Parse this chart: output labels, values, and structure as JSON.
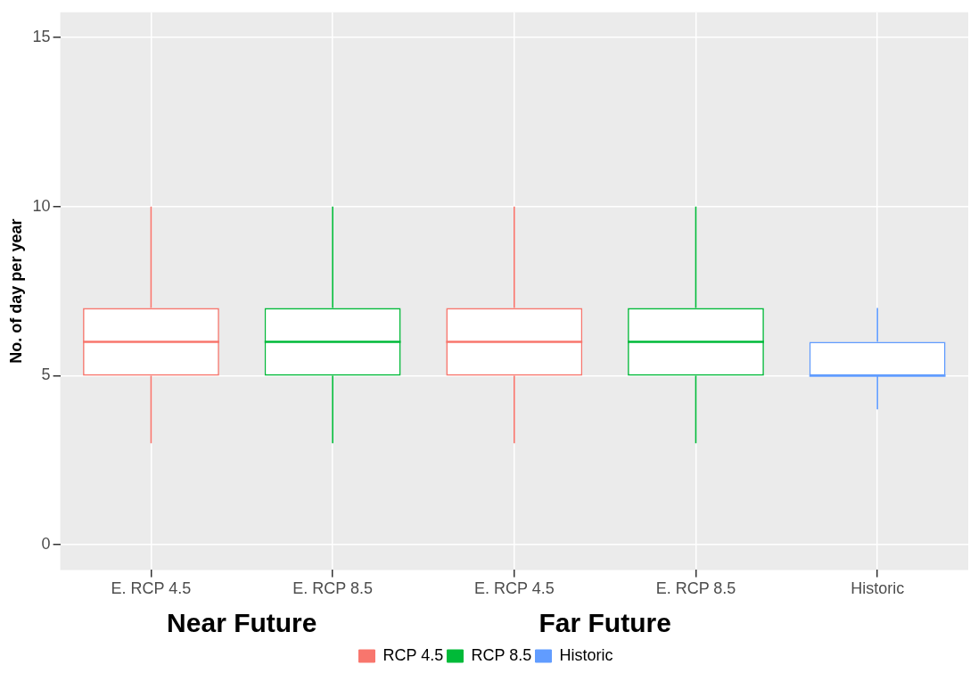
{
  "chart_data": {
    "type": "box",
    "ylabel": "No. of day per year",
    "categories": [
      "E. RCP 4.5",
      "E. RCP 8.5",
      "E. RCP 4.5",
      "E. RCP 8.5",
      "Historic"
    ],
    "series": [
      {
        "name": "RCP 4.5",
        "color": "#f8766d",
        "boxes": [
          {
            "low": 3,
            "q1": 5,
            "median": 6,
            "q3": 7,
            "high": 10
          },
          null,
          {
            "low": 3,
            "q1": 5,
            "median": 6,
            "q3": 7,
            "high": 10
          },
          null,
          null
        ]
      },
      {
        "name": "RCP 8.5",
        "color": "#00ba38",
        "boxes": [
          null,
          {
            "low": 3,
            "q1": 5,
            "median": 6,
            "q3": 7,
            "high": 10
          },
          null,
          {
            "low": 3,
            "q1": 5,
            "median": 6,
            "q3": 7,
            "high": 10
          },
          null
        ]
      },
      {
        "name": "Historic",
        "color": "#619cff",
        "boxes": [
          null,
          null,
          null,
          null,
          {
            "low": 4,
            "q1": 5,
            "median": 5,
            "q3": 6,
            "high": 7
          }
        ]
      }
    ],
    "ylim": [
      -0.75,
      15.75
    ],
    "yticks": [
      0,
      5,
      10,
      15
    ],
    "grid": true,
    "legend": "bottom",
    "annotations": [
      "Near Future",
      "Far Future"
    ]
  }
}
